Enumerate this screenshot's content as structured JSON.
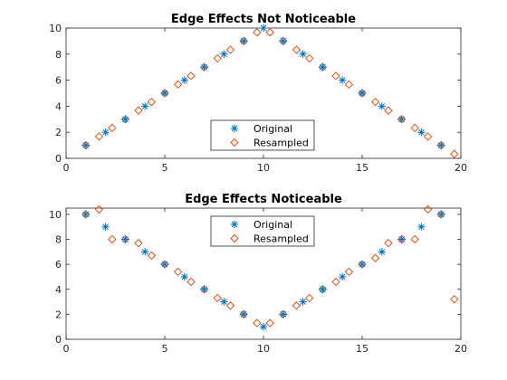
{
  "chart_data": [
    {
      "type": "scatter",
      "title": "Edge Effects Not Noticeable",
      "xlabel": "",
      "ylabel": "",
      "xlim": [
        0,
        20
      ],
      "ylim": [
        0,
        10
      ],
      "xticks": [
        "0",
        "5",
        "10",
        "15",
        "20"
      ],
      "yticks": [
        "0",
        "2",
        "4",
        "6",
        "8",
        "10"
      ],
      "grid": false,
      "legend_position": "lower-center",
      "series": [
        {
          "name": "Original",
          "marker": "asterisk",
          "color": "#0072BD",
          "x": [
            1,
            2,
            3,
            4,
            5,
            6,
            7,
            8,
            9,
            10,
            11,
            12,
            13,
            14,
            15,
            16,
            17,
            18,
            19
          ],
          "y": [
            1,
            2,
            3,
            4,
            5,
            6,
            7,
            8,
            9,
            10,
            9,
            8,
            7,
            6,
            5,
            4,
            3,
            2,
            1
          ]
        },
        {
          "name": "Resampled",
          "marker": "diamond",
          "color": "#D95319",
          "x": [
            1,
            1.67,
            2.33,
            3,
            3.67,
            4.33,
            5,
            5.67,
            6.33,
            7,
            7.67,
            8.33,
            9,
            9.67,
            10.33,
            11,
            11.67,
            12.33,
            13,
            13.67,
            14.33,
            15,
            15.67,
            16.33,
            17,
            17.67,
            18.33,
            19,
            19.67
          ],
          "y": [
            1,
            1.67,
            2.33,
            3,
            3.67,
            4.33,
            5,
            5.67,
            6.33,
            7,
            7.67,
            8.33,
            9,
            9.67,
            9.67,
            9,
            8.33,
            7.67,
            7,
            6.33,
            5.67,
            5,
            4.33,
            3.67,
            3,
            2.33,
            1.67,
            1,
            0.33
          ]
        }
      ]
    },
    {
      "type": "scatter",
      "title": "Edge Effects Noticeable",
      "xlabel": "",
      "ylabel": "",
      "xlim": [
        0,
        20
      ],
      "ylim": [
        0,
        10.5
      ],
      "xticks": [
        "0",
        "5",
        "10",
        "15",
        "20"
      ],
      "yticks": [
        "0",
        "2",
        "4",
        "6",
        "8",
        "10"
      ],
      "grid": false,
      "legend_position": "top-center",
      "series": [
        {
          "name": "Original",
          "marker": "asterisk",
          "color": "#0072BD",
          "x": [
            1,
            2,
            3,
            4,
            5,
            6,
            7,
            8,
            9,
            10,
            11,
            12,
            13,
            14,
            15,
            16,
            17,
            18,
            19
          ],
          "y": [
            10,
            9,
            8,
            7,
            6,
            5,
            4,
            3,
            2,
            1,
            2,
            3,
            4,
            5,
            6,
            7,
            8,
            9,
            10
          ]
        },
        {
          "name": "Resampled",
          "marker": "diamond",
          "color": "#D95319",
          "x": [
            1,
            1.67,
            2.33,
            3,
            3.67,
            4.33,
            5,
            5.67,
            6.33,
            7,
            7.67,
            8.33,
            9,
            9.67,
            10.33,
            11,
            11.67,
            12.33,
            13,
            13.67,
            14.33,
            15,
            15.67,
            16.33,
            17,
            17.67,
            18.33,
            19,
            19.67
          ],
          "y": [
            10,
            10.4,
            8,
            8,
            7.7,
            6.7,
            6,
            5.4,
            4.6,
            4,
            3.3,
            2.7,
            2,
            1.3,
            1.3,
            2,
            2.7,
            3.3,
            4,
            4.6,
            5.4,
            6,
            6.5,
            7.7,
            8,
            8,
            10.4,
            10,
            3.2
          ]
        }
      ]
    }
  ]
}
